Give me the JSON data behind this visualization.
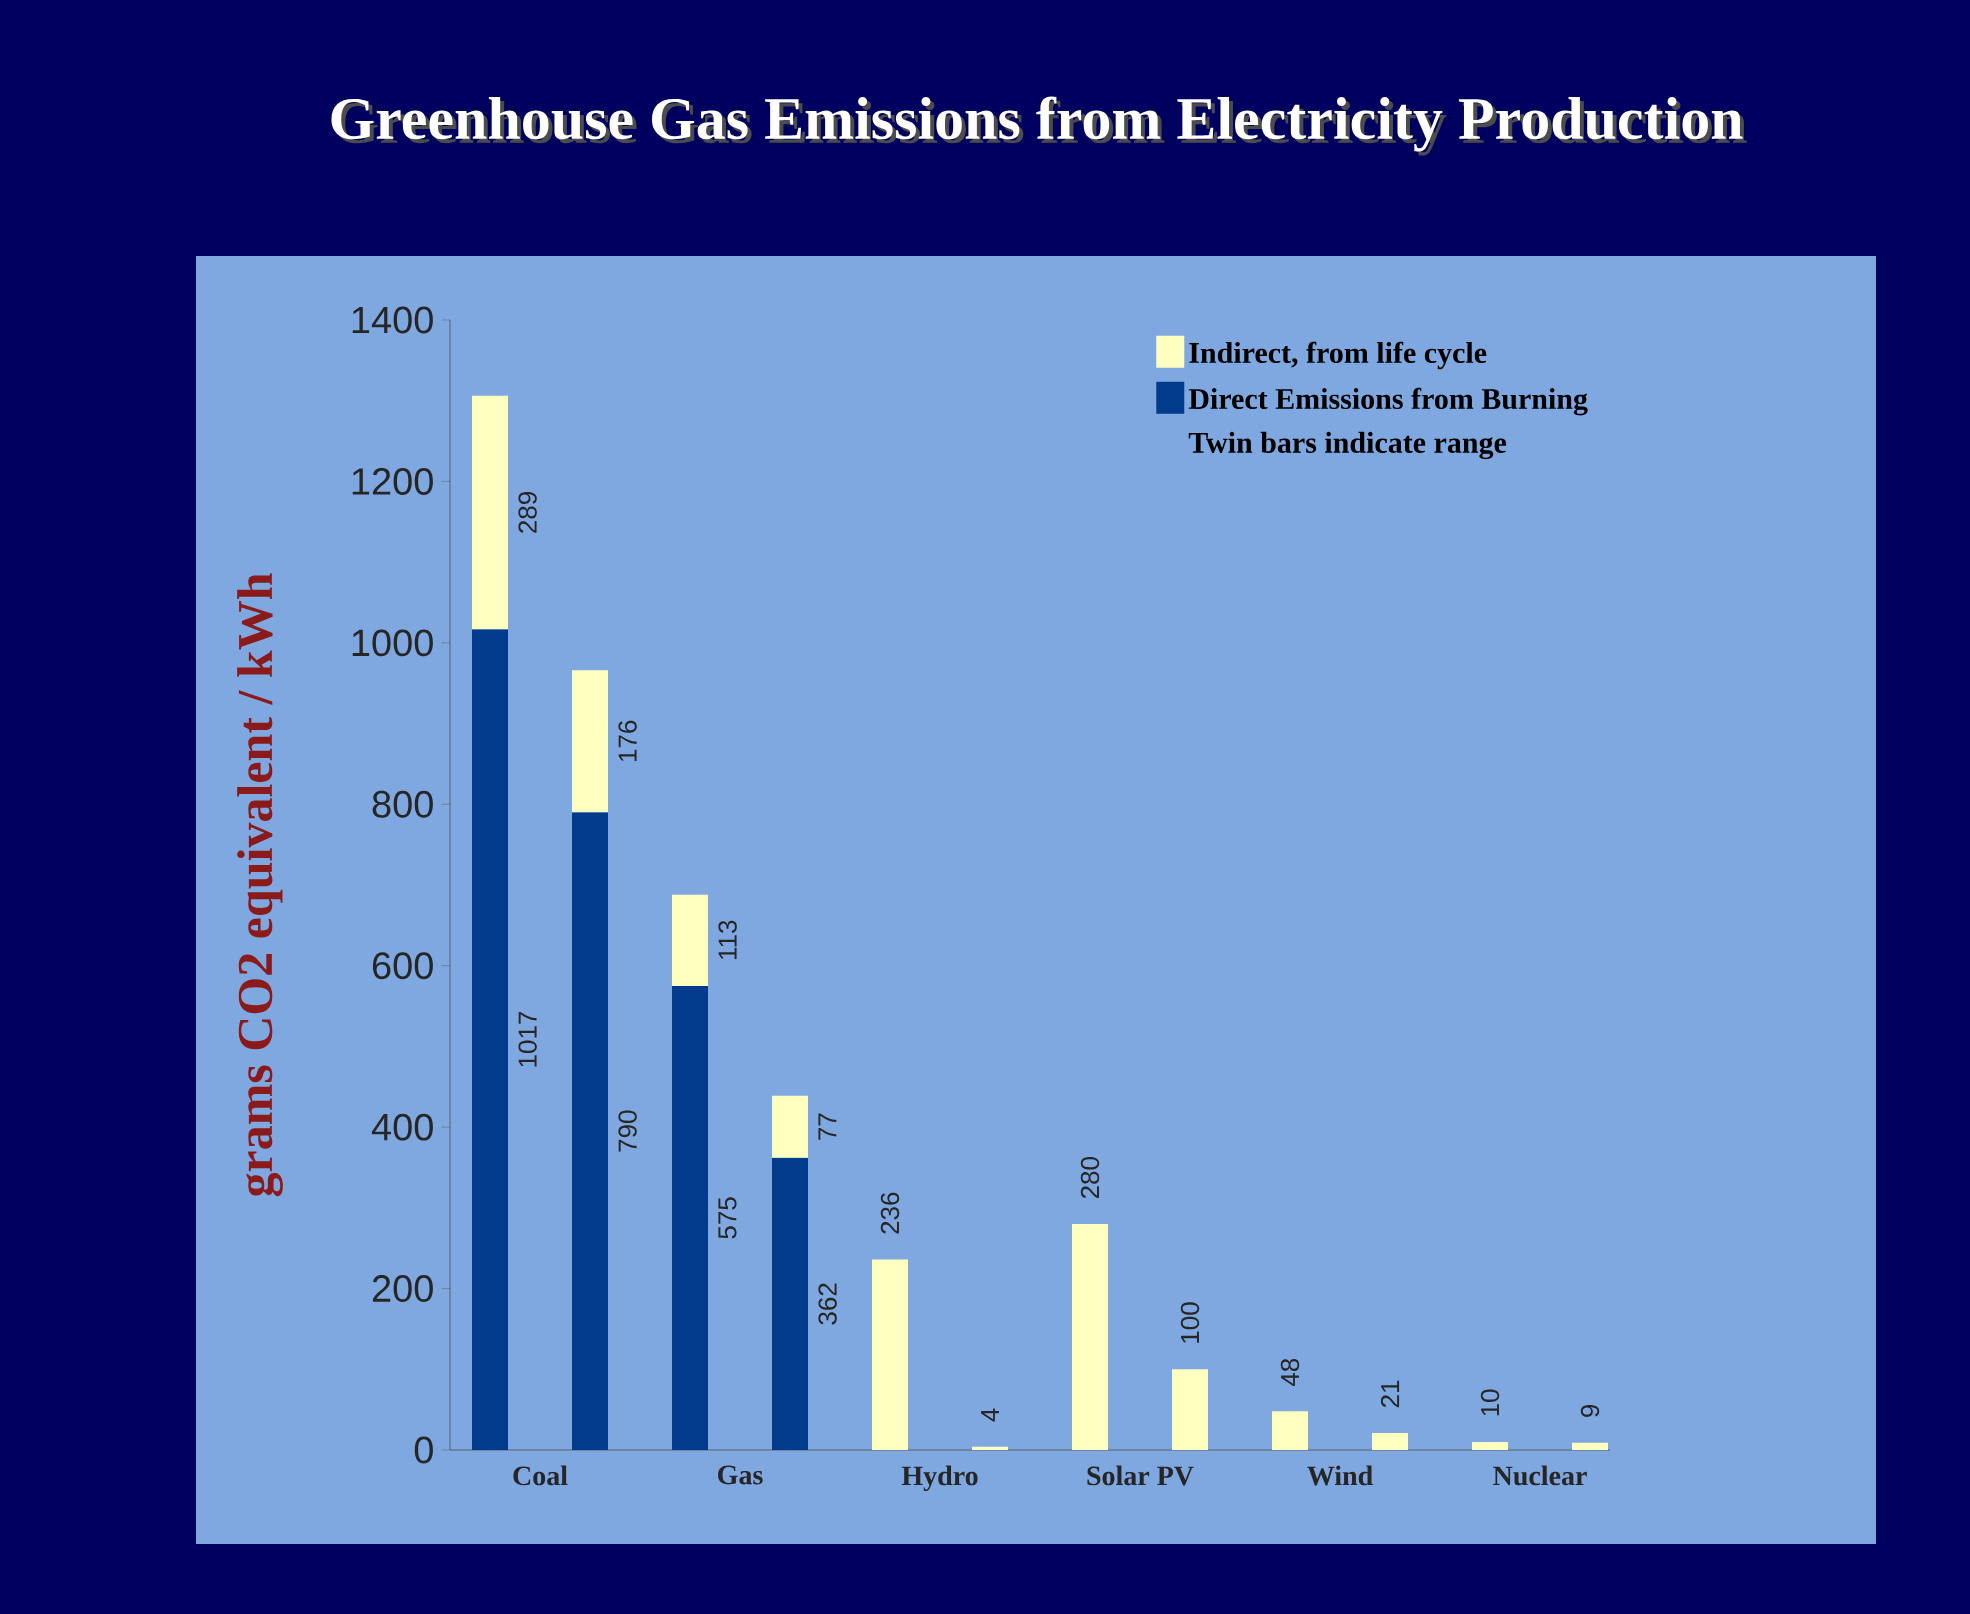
{
  "chart_data": {
    "type": "bar",
    "title": "Greenhouse Gas Emissions from Electricity Production",
    "ylabel": "grams CO2 equivalent / kWh",
    "categories": [
      "Coal",
      null,
      "Gas",
      null,
      "Hydro",
      null,
      "Solar PV",
      null,
      "Wind",
      null,
      "Nuclear",
      null
    ],
    "stacked": true,
    "series": [
      {
        "name": "Direct Emissions from Burning",
        "color": "#023a8c",
        "values": [
          1017,
          790,
          575,
          362,
          null,
          null,
          null,
          null,
          null,
          null,
          null,
          null
        ]
      },
      {
        "name": "Indirect, from life cycle",
        "color": "#ffffc0",
        "values": [
          289,
          176,
          113,
          77,
          236,
          4,
          280,
          100,
          48,
          21,
          10,
          9
        ]
      }
    ],
    "ylim": [
      0,
      1400
    ],
    "yticks": [
      0,
      200,
      400,
      600,
      800,
      1000,
      1200,
      1400
    ],
    "data_labels": true,
    "legend": "top right",
    "annotations": [
      "Twin bars indicate range"
    ]
  }
}
